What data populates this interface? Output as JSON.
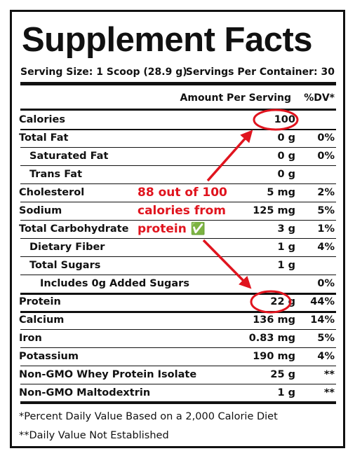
{
  "header": {
    "title": "Supplement Facts",
    "serving_size": "Serving Size: 1 Scoop (28.9 g)",
    "servings_per_container": "Servings Per Container: 30"
  },
  "columns": {
    "amount": "Amount Per Serving",
    "dv": "%DV*"
  },
  "rows": [
    {
      "label": "Calories",
      "amount": "100"
    },
    {
      "label": "Total Fat",
      "amount": "0 g",
      "dv": "0%"
    },
    {
      "label": "Saturated Fat",
      "amount": "0 g",
      "dv": "0%"
    },
    {
      "label": "Trans Fat",
      "amount": "0 g"
    },
    {
      "label": "Cholesterol",
      "amount": "5 mg",
      "dv": "2%"
    },
    {
      "label": "Sodium",
      "amount": "125 mg",
      "dv": "5%"
    },
    {
      "label": "Total Carbohydrate",
      "amount": "3 g",
      "dv": "1%"
    },
    {
      "label": "Dietary Fiber",
      "amount": "1 g",
      "dv": "4%"
    },
    {
      "label": "Total Sugars",
      "amount": "1 g"
    },
    {
      "label": "Includes 0g Added Sugars",
      "dv": "0%"
    },
    {
      "label": "Protein",
      "amount": "22 g",
      "dv": "44%"
    },
    {
      "label": "Calcium",
      "amount": "136 mg",
      "dv": "14%"
    },
    {
      "label": "Iron",
      "amount": "0.83 mg",
      "dv": "5%"
    },
    {
      "label": "Potassium",
      "amount": "190 mg",
      "dv": "4%"
    },
    {
      "label": "Non-GMO Whey Protein Isolate",
      "amount": "25 g",
      "dv": "**"
    },
    {
      "label": "Non-GMO Maltodextrin",
      "amount": "1 g",
      "dv": "**"
    }
  ],
  "footnotes": [
    "*Percent Daily Value Based on a 2,000 Calorie Diet",
    "**Daily Value Not Established"
  ],
  "annotation": {
    "lines": [
      "88 out of 100",
      "calories from",
      "protein ✅"
    ]
  }
}
